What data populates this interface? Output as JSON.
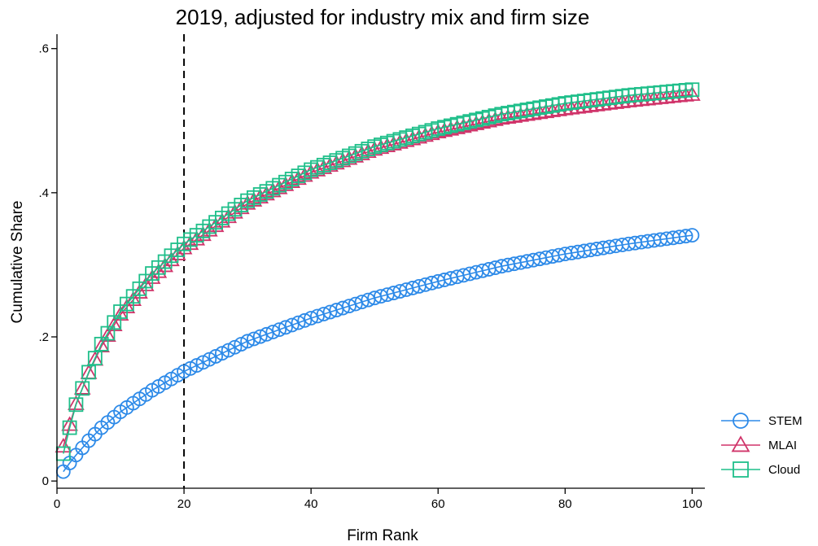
{
  "chart_data": {
    "type": "line",
    "title": "2019, adjusted for industry mix and firm size",
    "xlabel": "Firm Rank",
    "ylabel": "Cumulative Share",
    "xlim": [
      0,
      102
    ],
    "ylim": [
      -0.01,
      0.62
    ],
    "x_ticks": [
      0,
      20,
      40,
      60,
      80,
      100
    ],
    "x_tick_labels": [
      "0",
      "20",
      "40",
      "60",
      "80",
      "100"
    ],
    "y_ticks": [
      0,
      0.2,
      0.4,
      0.6
    ],
    "y_tick_labels": [
      "0",
      ".2",
      ".4",
      ".6"
    ],
    "reference_line": {
      "x": 20,
      "style": "dashed",
      "color": "#000000"
    },
    "grid": false,
    "legend_position": "bottom-right",
    "x": [
      1,
      100
    ],
    "series": [
      {
        "name": "STEM",
        "color": "#2d8ae8",
        "marker": "circle",
        "points": [
          [
            1,
            0.013
          ],
          [
            2,
            0.025
          ],
          [
            3,
            0.036
          ],
          [
            5,
            0.056
          ],
          [
            7,
            0.074
          ],
          [
            10,
            0.096
          ],
          [
            15,
            0.126
          ],
          [
            20,
            0.152
          ],
          [
            30,
            0.194
          ],
          [
            40,
            0.226
          ],
          [
            50,
            0.254
          ],
          [
            60,
            0.277
          ],
          [
            70,
            0.298
          ],
          [
            80,
            0.315
          ],
          [
            90,
            0.329
          ],
          [
            100,
            0.341
          ]
        ]
      },
      {
        "name": "MLAI",
        "color": "#d0346a",
        "marker": "triangle",
        "points": [
          [
            1,
            0.048
          ],
          [
            2,
            0.078
          ],
          [
            3,
            0.107
          ],
          [
            5,
            0.15
          ],
          [
            7,
            0.187
          ],
          [
            10,
            0.231
          ],
          [
            15,
            0.282
          ],
          [
            20,
            0.323
          ],
          [
            30,
            0.385
          ],
          [
            40,
            0.428
          ],
          [
            50,
            0.46
          ],
          [
            60,
            0.484
          ],
          [
            70,
            0.503
          ],
          [
            80,
            0.516
          ],
          [
            90,
            0.527
          ],
          [
            100,
            0.536
          ]
        ]
      },
      {
        "name": "Cloud",
        "color": "#1fbf8a",
        "marker": "square",
        "points": [
          [
            1,
            0.038
          ],
          [
            2,
            0.074
          ],
          [
            3,
            0.106
          ],
          [
            5,
            0.151
          ],
          [
            7,
            0.19
          ],
          [
            10,
            0.235
          ],
          [
            15,
            0.288
          ],
          [
            20,
            0.329
          ],
          [
            30,
            0.389
          ],
          [
            40,
            0.432
          ],
          [
            50,
            0.464
          ],
          [
            60,
            0.489
          ],
          [
            70,
            0.509
          ],
          [
            80,
            0.524
          ],
          [
            90,
            0.535
          ],
          [
            100,
            0.543
          ]
        ]
      }
    ]
  }
}
